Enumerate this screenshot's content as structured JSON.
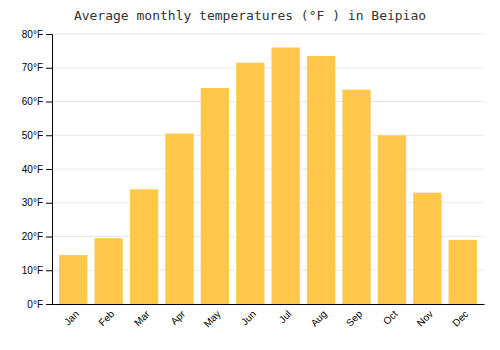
{
  "chart_data": {
    "type": "bar",
    "title": "Average monthly temperatures (°F ) in Beipiao",
    "categories": [
      "Jan",
      "Feb",
      "Mar",
      "Apr",
      "May",
      "Jun",
      "Jul",
      "Aug",
      "Sep",
      "Oct",
      "Nov",
      "Dec"
    ],
    "values": [
      14.5,
      19.5,
      34.0,
      50.5,
      64.0,
      71.5,
      76.0,
      73.5,
      63.5,
      50.0,
      33.0,
      19.0
    ],
    "color": "#FFC84A",
    "ylim": [
      0,
      80
    ],
    "yticks": [
      {
        "value": 0,
        "label": "0°F"
      },
      {
        "value": 10,
        "label": "10°F"
      },
      {
        "value": 20,
        "label": "20°F"
      },
      {
        "value": 30,
        "label": "30°F"
      },
      {
        "value": 40,
        "label": "40°F"
      },
      {
        "value": 50,
        "label": "50°F"
      },
      {
        "value": 60,
        "label": "60°F"
      },
      {
        "value": 70,
        "label": "70°F"
      },
      {
        "value": 80,
        "label": "80°F"
      }
    ],
    "grid": true
  }
}
